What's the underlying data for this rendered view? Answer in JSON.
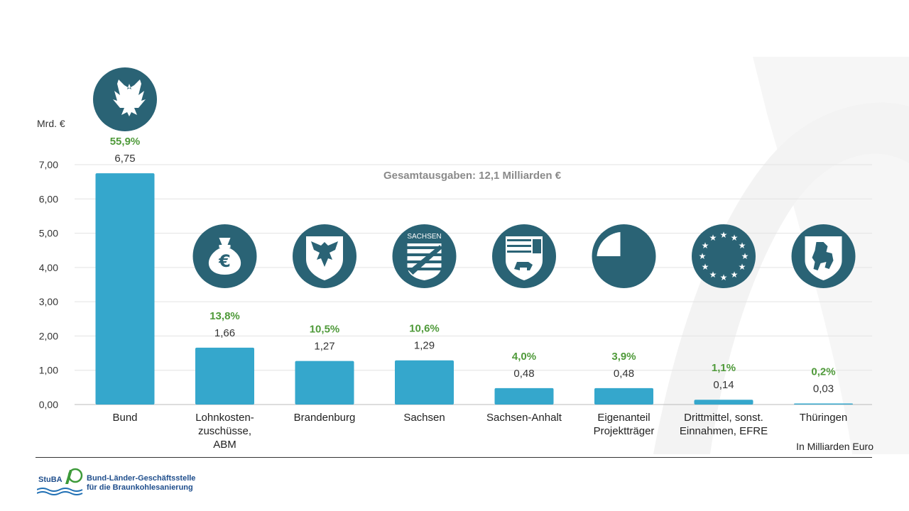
{
  "chart_data": {
    "type": "bar",
    "categories": [
      "Bund",
      "Lohnkosten-\nzuschüsse,\nABM",
      "Brandenburg",
      "Sachsen",
      "Sachsen-Anhalt",
      "Eigenanteil\nProjektträger",
      "Drittmittel, sonst.\nEinnahmen, EFRE",
      "Thüringen"
    ],
    "values": [
      6.75,
      1.66,
      1.27,
      1.29,
      0.48,
      0.48,
      0.14,
      0.03
    ],
    "value_labels": [
      "6,75",
      "1,66",
      "1,27",
      "1,29",
      "0,48",
      "0,48",
      "0,14",
      "0,03"
    ],
    "shares": [
      "55,9%",
      "13,8%",
      "10,5%",
      "10,6%",
      "4,0%",
      "3,9%",
      "1,1%",
      "0,2%"
    ],
    "icons": [
      "federal-eagle-icon",
      "money-bag-euro-icon",
      "brandenburg-eagle-icon",
      "sachsen-crest-icon",
      "sachsen-anhalt-crest-icon",
      "pie-slice-icon",
      "eu-stars-icon",
      "thueringen-lion-icon"
    ],
    "sachsen_icon_text": "SACHSEN",
    "ylabel": "Mrd. €",
    "ylim": [
      0,
      7
    ],
    "yticks": [
      0,
      1,
      2,
      3,
      4,
      5,
      6,
      7
    ],
    "ytick_labels": [
      "0,00",
      "1,00",
      "2,00",
      "3,00",
      "4,00",
      "5,00",
      "6,00",
      "7,00"
    ],
    "annotation": "Gesamtausgaben: 12,1 Milliarden  €",
    "note": "In Milliarden Euro",
    "grid": true,
    "colors": {
      "bar": "#35a7cc",
      "share": "#4f9a3a",
      "icon": "#2a6375",
      "grid": "#e3e3e3"
    }
  },
  "footer": {
    "logo_abbr": "StuBA",
    "logo_name_line1": "Bund-Länder-Geschäftsstelle",
    "logo_name_line2": "für die Braunkohlesanierung"
  }
}
